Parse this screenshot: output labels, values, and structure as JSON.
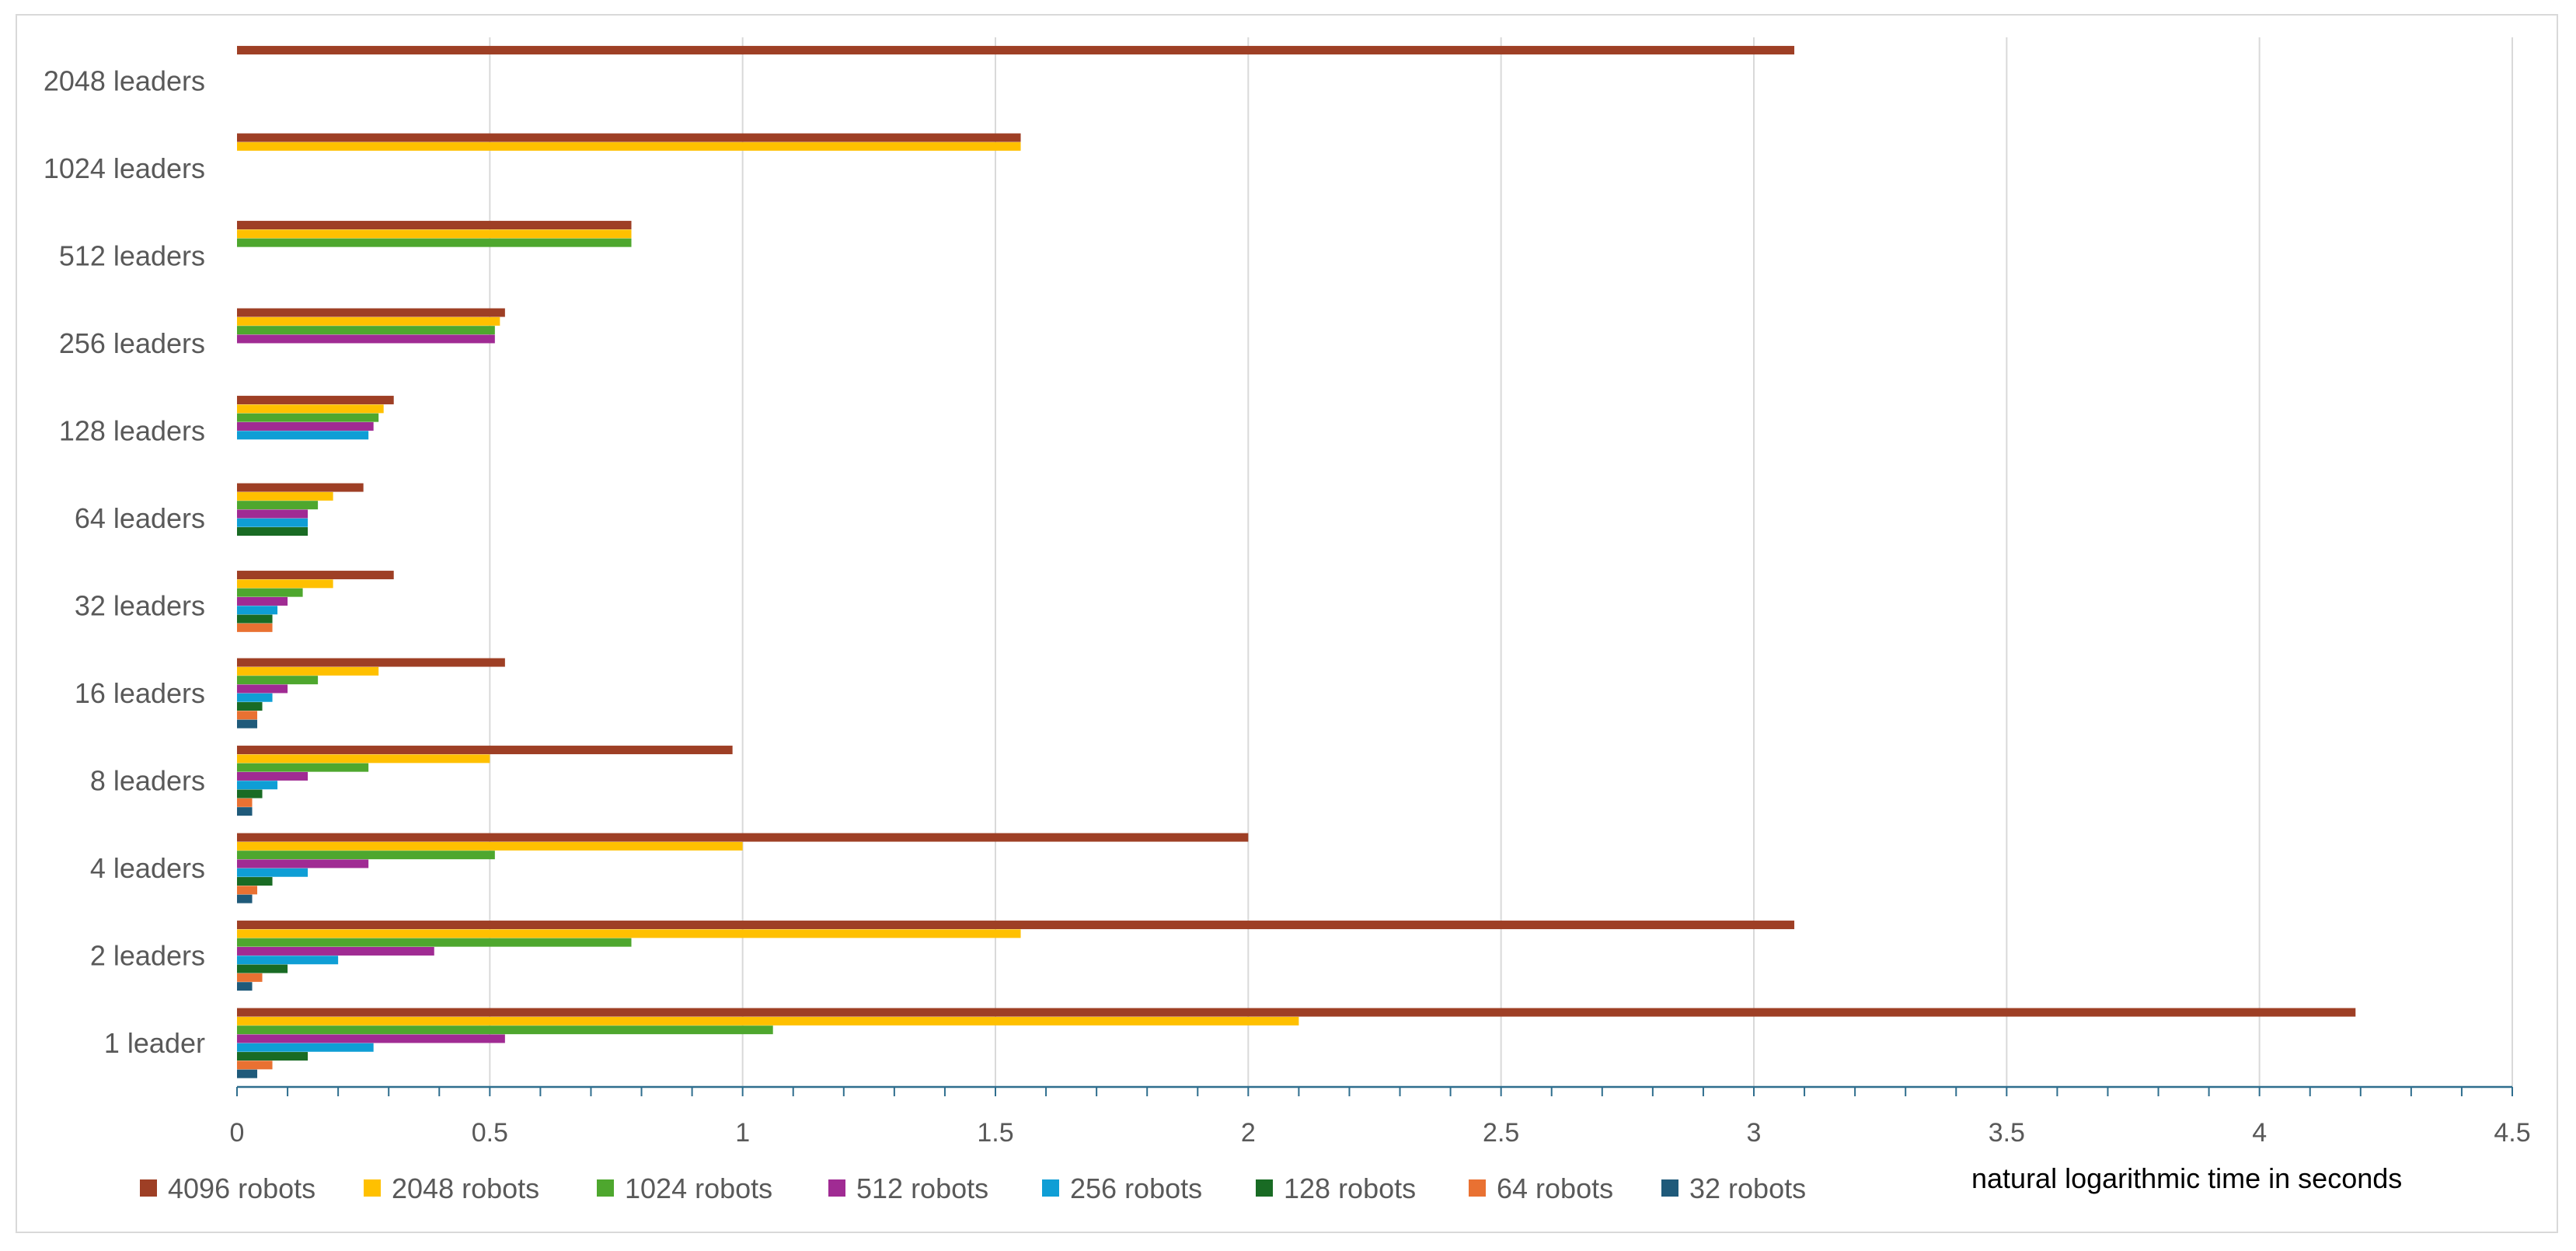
{
  "chart_data": {
    "type": "bar",
    "orientation": "horizontal",
    "title": "",
    "xlabel": "natural logarithmic time in seconds",
    "ylabel": "",
    "xlim": [
      0,
      4.5
    ],
    "x_ticks": [
      0,
      0.5,
      1,
      1.5,
      2,
      2.5,
      3,
      3.5,
      4,
      4.5
    ],
    "grid": "vertical",
    "legend_position": "bottom",
    "categories": [
      "1 leader",
      "2 leaders",
      "4 leaders",
      "8 leaders",
      "16 leaders",
      "32 leaders",
      "64 leaders",
      "128 leaders",
      "256 leaders",
      "512 leaders",
      "1024 leaders",
      "2048 leaders"
    ],
    "series": [
      {
        "name": "4096 robots",
        "color": "#9E3F25",
        "values": [
          4.19,
          3.08,
          2.0,
          0.98,
          0.53,
          0.31,
          0.25,
          0.31,
          0.53,
          0.78,
          1.55,
          3.08
        ]
      },
      {
        "name": "2048 robots",
        "color": "#FFC000",
        "values": [
          2.1,
          1.55,
          1.0,
          0.5,
          0.28,
          0.19,
          0.19,
          0.29,
          0.52,
          0.78,
          1.55,
          null
        ]
      },
      {
        "name": "1024 robots",
        "color": "#4EA72E",
        "values": [
          1.06,
          0.78,
          0.51,
          0.26,
          0.16,
          0.13,
          0.16,
          0.28,
          0.51,
          0.78,
          null,
          null
        ]
      },
      {
        "name": "512 robots",
        "color": "#A02B93",
        "values": [
          0.53,
          0.39,
          0.26,
          0.14,
          0.1,
          0.1,
          0.14,
          0.27,
          0.51,
          null,
          null,
          null
        ]
      },
      {
        "name": "256 robots",
        "color": "#0F9ED5",
        "values": [
          0.27,
          0.2,
          0.14,
          0.08,
          0.07,
          0.08,
          0.14,
          0.26,
          null,
          null,
          null,
          null
        ]
      },
      {
        "name": "128 robots",
        "color": "#196B24",
        "values": [
          0.14,
          0.1,
          0.07,
          0.05,
          0.05,
          0.07,
          0.14,
          null,
          null,
          null,
          null,
          null
        ]
      },
      {
        "name": "64 robots",
        "color": "#E97132",
        "values": [
          0.07,
          0.05,
          0.04,
          0.03,
          0.04,
          0.07,
          null,
          null,
          null,
          null,
          null,
          null
        ]
      },
      {
        "name": "32 robots",
        "color": "#1F5A7A",
        "values": [
          0.04,
          0.03,
          0.03,
          0.03,
          0.04,
          null,
          null,
          null,
          null,
          null,
          null,
          null
        ]
      }
    ]
  }
}
